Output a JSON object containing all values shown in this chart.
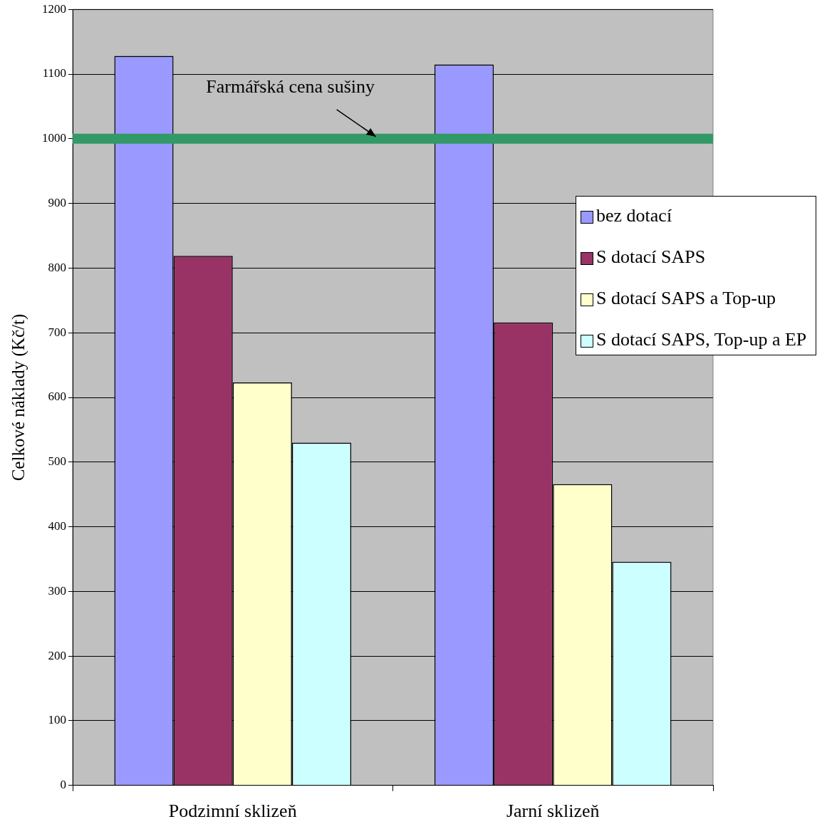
{
  "chart_data": {
    "type": "bar",
    "ylabel": "Celkové náklady (Kč/t)",
    "categories": [
      "Podzimní sklizeň",
      "Jarní sklizeň"
    ],
    "series": [
      {
        "name": "bez dotací",
        "color": "#9999ff",
        "values": [
          1128,
          1115
        ]
      },
      {
        "name": "S dotací SAPS",
        "color": "#993366",
        "values": [
          819,
          716
        ]
      },
      {
        "name": "S dotací SAPS a Top-up",
        "color": "#ffffcc",
        "values": [
          623,
          466
        ]
      },
      {
        "name": "S dotací SAPS, Top-up a EP",
        "color": "#ccffff",
        "values": [
          530,
          346
        ]
      }
    ],
    "ylim": [
      0,
      1200
    ],
    "yticks": [
      0,
      100,
      200,
      300,
      400,
      500,
      600,
      700,
      800,
      900,
      1000,
      1100,
      1200
    ],
    "grid": "y",
    "legend": "right",
    "ref_lines": [
      {
        "axis": "y",
        "value": 1000,
        "label": "Farmářská cena sušiny",
        "color": "#339966"
      }
    ]
  }
}
